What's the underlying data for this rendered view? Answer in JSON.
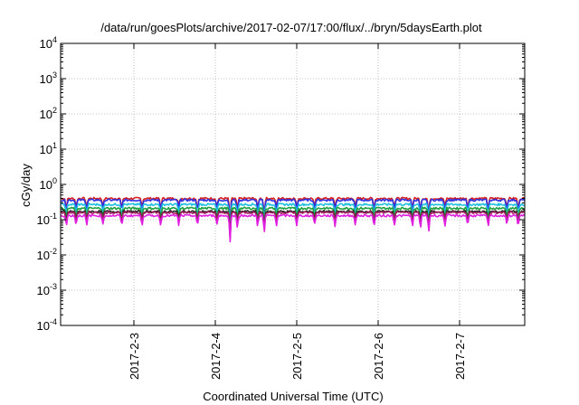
{
  "chart_data": {
    "type": "line",
    "title": "/data/run/goesPlots/archive/2017-02-07/17:00/flux/../bryn/5daysEarth.plot",
    "xlabel": "Coordinated Universal Time (UTC)",
    "ylabel": "cGy/day",
    "yscale": "log",
    "ylim": [
      0.0001,
      10000
    ],
    "xlim": [
      2.1,
      7.8
    ],
    "grid": true,
    "x_ticks": [
      {
        "value": 3,
        "label": "2017-2-3"
      },
      {
        "value": 4,
        "label": "2017-2-4"
      },
      {
        "value": 5,
        "label": "2017-2-5"
      },
      {
        "value": 6,
        "label": "2017-2-6"
      },
      {
        "value": 7,
        "label": "2017-2-7"
      }
    ],
    "y_ticks": [
      {
        "value": 0.0001,
        "base": "10",
        "exp": "-4"
      },
      {
        "value": 0.001,
        "base": "10",
        "exp": "-3"
      },
      {
        "value": 0.01,
        "base": "10",
        "exp": "-2"
      },
      {
        "value": 0.1,
        "base": "10",
        "exp": "-1"
      },
      {
        "value": 1,
        "base": "10",
        "exp": "0"
      },
      {
        "value": 10,
        "base": "10",
        "exp": "1"
      },
      {
        "value": 100,
        "base": "10",
        "exp": "2"
      },
      {
        "value": 1000,
        "base": "10",
        "exp": "3"
      },
      {
        "value": 10000,
        "base": "10",
        "exp": "4"
      }
    ],
    "series": [
      {
        "color": "#d42020",
        "base": 0.4
      },
      {
        "color": "#3030e0",
        "base": 0.36
      },
      {
        "color": "#20c0e0",
        "base": 0.27
      },
      {
        "color": "#20a040",
        "base": 0.21
      },
      {
        "color": "#202020",
        "base": 0.17
      },
      {
        "color": "#a02060",
        "base": 0.16
      },
      {
        "color": "#e020e0",
        "base": 0.13
      }
    ],
    "dips": [
      {
        "x": 2.17,
        "depth": 0.5
      },
      {
        "x": 2.29,
        "depth": 0.55
      },
      {
        "x": 2.42,
        "depth": 0.5
      },
      {
        "x": 2.62,
        "depth": 0.55
      },
      {
        "x": 2.85,
        "depth": 0.5
      },
      {
        "x": 3.1,
        "depth": 0.55
      },
      {
        "x": 3.33,
        "depth": 0.5
      },
      {
        "x": 3.55,
        "depth": 0.55
      },
      {
        "x": 3.78,
        "depth": 0.5
      },
      {
        "x": 4.02,
        "depth": 0.55
      },
      {
        "x": 4.18,
        "depth": 0.16
      },
      {
        "x": 4.27,
        "depth": 0.45
      },
      {
        "x": 4.52,
        "depth": 0.5
      },
      {
        "x": 4.6,
        "depth": 0.3
      },
      {
        "x": 4.75,
        "depth": 0.55
      },
      {
        "x": 5.0,
        "depth": 0.5
      },
      {
        "x": 5.22,
        "depth": 0.55
      },
      {
        "x": 5.47,
        "depth": 0.5
      },
      {
        "x": 5.72,
        "depth": 0.55
      },
      {
        "x": 5.95,
        "depth": 0.5
      },
      {
        "x": 6.2,
        "depth": 0.55
      },
      {
        "x": 6.42,
        "depth": 0.5
      },
      {
        "x": 6.52,
        "depth": 0.45
      },
      {
        "x": 6.62,
        "depth": 0.35
      },
      {
        "x": 6.82,
        "depth": 0.5
      },
      {
        "x": 7.1,
        "depth": 0.55
      },
      {
        "x": 7.35,
        "depth": 0.5
      },
      {
        "x": 7.58,
        "depth": 0.55
      },
      {
        "x": 7.72,
        "depth": 0.5
      }
    ]
  }
}
